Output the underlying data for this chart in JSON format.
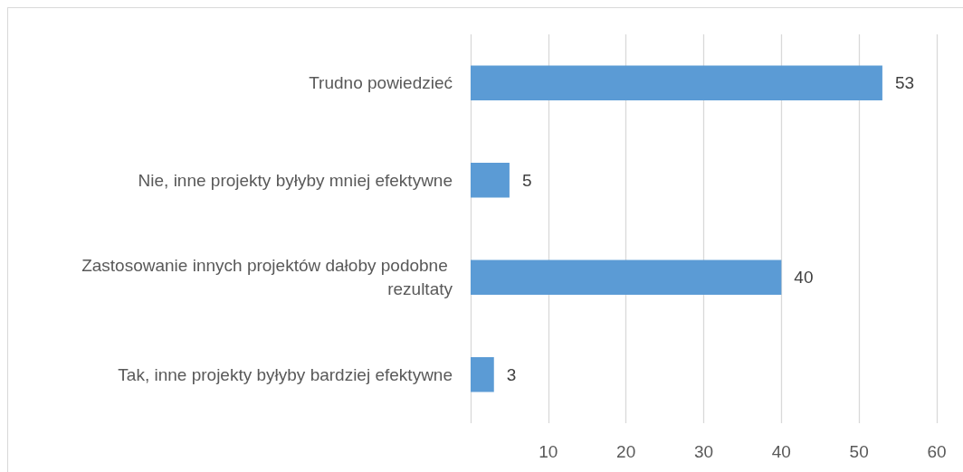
{
  "chart_data": {
    "type": "bar",
    "orientation": "horizontal",
    "categories": [
      "Trudno powiedzieć",
      "Nie, inne projekty byłyby mniej efektywne",
      "Zastosowanie innych projektów dałoby podobne rezultaty",
      "Tak, inne projekty byłyby bardziej efektywne"
    ],
    "values": [
      53,
      5,
      40,
      3
    ],
    "color": "#5b9bd5",
    "xlim": [
      0,
      60
    ],
    "xticks": [
      {
        "value": 0,
        "label": null
      },
      10,
      20,
      30,
      40,
      50,
      60
    ],
    "grid": "x",
    "data_labels": true
  }
}
